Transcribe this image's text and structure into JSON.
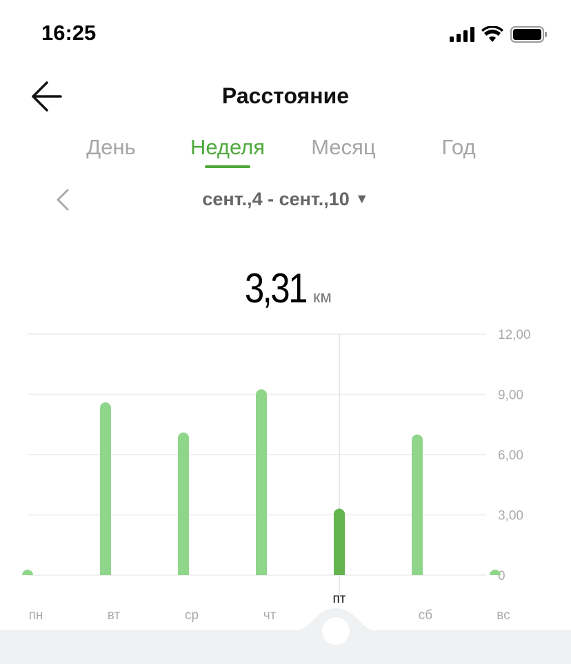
{
  "status_bar": {
    "time": "16:25",
    "icons": [
      "signal-icon",
      "wifi-icon",
      "battery-icon"
    ]
  },
  "header": {
    "title": "Расстояние",
    "back_icon": "arrow-left-icon"
  },
  "tabs": [
    {
      "label": "День",
      "active": false
    },
    {
      "label": "Неделя",
      "active": true
    },
    {
      "label": "Месяц",
      "active": false
    },
    {
      "label": "Год",
      "active": false
    }
  ],
  "range": {
    "label": "сент.,4 - сент.,10",
    "prev_icon": "chevron-left-icon",
    "dropdown_icon": "triangle-down-icon"
  },
  "summary": {
    "value": "3,31",
    "unit": "км"
  },
  "colors": {
    "accent": "#4eaa3c",
    "bar": "#8fd68b",
    "bar_selected": "#63b34f"
  },
  "chart_data": {
    "type": "bar",
    "categories": [
      "пн",
      "вт",
      "ср",
      "чт",
      "пт",
      "сб",
      "вс"
    ],
    "values": [
      0,
      8.6,
      7.1,
      9.25,
      3.31,
      7.0,
      0
    ],
    "selected": "пт",
    "ylim": [
      0,
      12
    ],
    "yticks": [
      "0",
      "3,00",
      "6,00",
      "9,00",
      "12,00"
    ],
    "ytick_values": [
      0,
      3,
      6,
      9,
      12
    ],
    "grid": true
  }
}
